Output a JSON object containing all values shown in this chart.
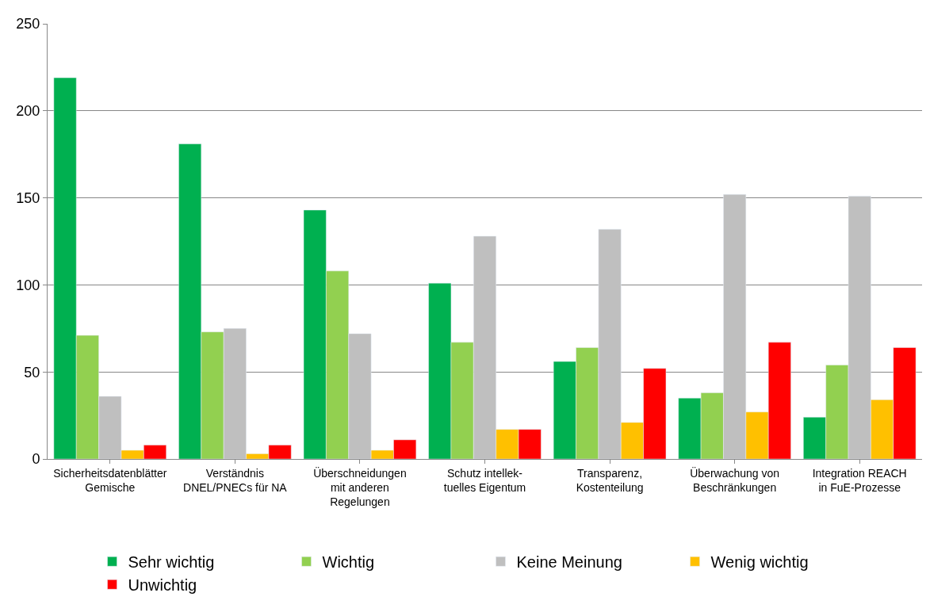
{
  "chart_data": {
    "type": "bar",
    "categories": [
      "Sicherheitsdatenblätter\nGemische",
      "Verständnis\nDNEL/PNECs für NA",
      "Überschneidungen\nmit anderen\nRegelungen",
      "Schutz intellek-\ntuelles Eigentum",
      "Transparenz,\nKostenteilung",
      "Überwachung von\nBeschränkungen",
      "Integration REACH\nin FuE-Prozesse"
    ],
    "series": [
      {
        "name": "Sehr wichtig",
        "color": "#00b050",
        "values": [
          219,
          181,
          143,
          101,
          56,
          35,
          24
        ]
      },
      {
        "name": "Wichtig",
        "color": "#92d050",
        "values": [
          71,
          73,
          108,
          67,
          64,
          38,
          54
        ]
      },
      {
        "name": "Keine Meinung",
        "color": "#bfbfbf",
        "values": [
          36,
          75,
          72,
          128,
          132,
          152,
          151
        ]
      },
      {
        "name": "Wenig wichtig",
        "color": "#ffc000",
        "values": [
          5,
          3,
          5,
          17,
          21,
          27,
          34
        ]
      },
      {
        "name": "Unwichtig",
        "color": "#ff0000",
        "values": [
          8,
          8,
          11,
          17,
          52,
          67,
          64
        ]
      }
    ],
    "ylim": [
      0,
      250
    ],
    "yticks": [
      0,
      50,
      100,
      150,
      200,
      250
    ],
    "grid": "y",
    "legend": "bottom"
  }
}
